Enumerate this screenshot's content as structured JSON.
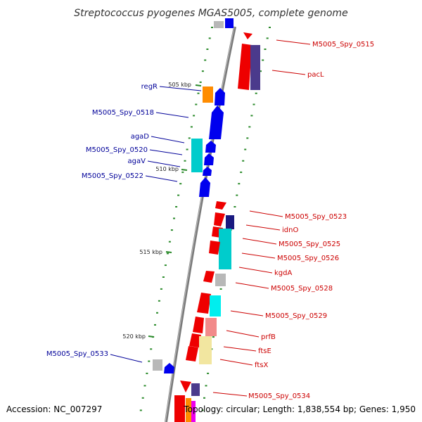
{
  "title": "Streptococcus pyogenes MGAS5005, complete genome",
  "footer": {
    "accession": "Accession: NC_007297",
    "topology": "Topology: circular; Length: 1,838,554 bp; Genes: 1,950"
  },
  "colors": {
    "forward_label": "#cc0000",
    "reverse_label": "#000099",
    "backbone": "#808080",
    "tick": "#2a8a2a"
  },
  "scale_labels": [
    "505 kbp",
    "510 kbp",
    "515 kbp",
    "520 kbp"
  ],
  "forward_genes": [
    {
      "label": "M5005_Spy_0515"
    },
    {
      "label": "pacL"
    },
    {
      "label": "M5005_Spy_0523"
    },
    {
      "label": "idnO"
    },
    {
      "label": "M5005_Spy_0525"
    },
    {
      "label": "M5005_Spy_0526"
    },
    {
      "label": "kgdA"
    },
    {
      "label": "M5005_Spy_0528"
    },
    {
      "label": "M5005_Spy_0529"
    },
    {
      "label": "prfB"
    },
    {
      "label": "ftsE"
    },
    {
      "label": "ftsX"
    },
    {
      "label": "M5005_Spy_0534"
    }
  ],
  "reverse_genes": [
    {
      "label": "regR"
    },
    {
      "label": "M5005_Spy_0518"
    },
    {
      "label": "agaD"
    },
    {
      "label": "M5005_Spy_0520"
    },
    {
      "label": "agaV"
    },
    {
      "label": "M5005_Spy_0522"
    },
    {
      "label": "M5005_Spy_0533"
    }
  ]
}
